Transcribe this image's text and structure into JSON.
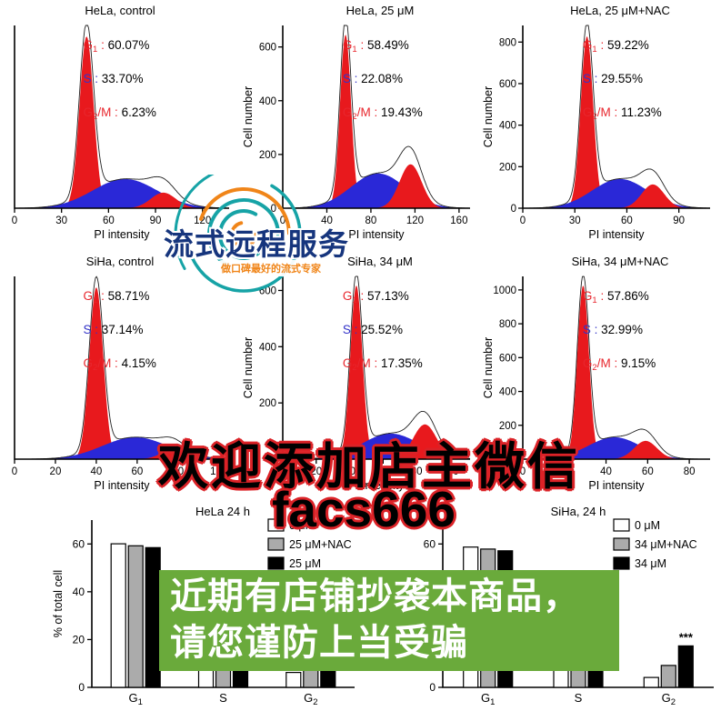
{
  "palette": {
    "g1_red": "#e8191d",
    "s_blue": "#2a28d7",
    "stat_red": "#e8262d",
    "stat_blue": "#3434c8",
    "banner_green": "#6aaa3b",
    "outline_red": "#db2227",
    "logo_teal": "#16a3a6",
    "logo_orange": "#f08519",
    "logo_navy": "#16357d"
  },
  "watermark": {
    "logo_text": "流式远程服务",
    "logo_subtext": "做口碑最好的流式专家",
    "wechat_line1": "欢迎添加店主微信",
    "wechat_line2": "facs666",
    "banner_line1": "近期有店铺抄袭本商品，",
    "banner_line2": "请您谨防上当受骗",
    "banner_color": "#6aaa3b"
  },
  "chart_data": [
    {
      "type": "area",
      "subtype": "flow-cytometry-histogram",
      "title": "HeLa, control",
      "xlabel": "PI intensity",
      "ylabel": null,
      "x_ticks": [
        0,
        30,
        60,
        90,
        120
      ],
      "x_max": 137,
      "y_ticks": [],
      "y_max": null,
      "stats": [
        {
          "label": "G1",
          "value": "60.07%",
          "color": "#e8262d"
        },
        {
          "label": "S",
          "value": "33.70%",
          "color": "#3434c8"
        },
        {
          "label": "G2/M",
          "value": "6.23%",
          "color": "#e8262d"
        }
      ],
      "g1": {
        "x": 46,
        "w": 4.5,
        "h": 0.94
      },
      "s": {
        "h": 0.16
      },
      "g2": {
        "x": 95,
        "w": 8,
        "h": 0.085
      }
    },
    {
      "type": "area",
      "subtype": "flow-cytometry-histogram",
      "title": "HeLa, 25 μM",
      "xlabel": "PI intensity",
      "ylabel": "Cell number",
      "x_ticks": [
        0,
        40,
        80,
        120,
        160
      ],
      "x_max": 170,
      "y_ticks": [
        0,
        200,
        400,
        600
      ],
      "y_max": 680,
      "stats": [
        {
          "label": "G1",
          "value": "58.49%",
          "color": "#e8262d"
        },
        {
          "label": "S",
          "value": "22.08%",
          "color": "#3434c8"
        },
        {
          "label": "G2/M",
          "value": "19.43%",
          "color": "#e8262d"
        }
      ],
      "g1": {
        "x": 57,
        "w": 5,
        "h": 0.95
      },
      "s": {
        "h": 0.19
      },
      "g2": {
        "x": 116,
        "w": 10,
        "h": 0.24
      }
    },
    {
      "type": "area",
      "subtype": "flow-cytometry-histogram",
      "title": "HeLa, 25 μM+NAC",
      "xlabel": "PI intensity",
      "ylabel": "Cell number",
      "x_ticks": [
        0,
        30,
        60,
        90
      ],
      "x_max": 108,
      "y_ticks": [
        0,
        200,
        400,
        600,
        800
      ],
      "y_max": 880,
      "stats": [
        {
          "label": "G1",
          "value": "59.22%",
          "color": "#e8262d"
        },
        {
          "label": "S",
          "value": "29.55%",
          "color": "#3434c8"
        },
        {
          "label": "G2/M",
          "value": "11.23%",
          "color": "#e8262d"
        }
      ],
      "g1": {
        "x": 37,
        "w": 3.6,
        "h": 0.94
      },
      "s": {
        "h": 0.16
      },
      "g2": {
        "x": 75,
        "w": 6.5,
        "h": 0.13
      }
    },
    {
      "type": "area",
      "subtype": "flow-cytometry-histogram",
      "title": "SiHa, control",
      "xlabel": "PI intensity",
      "ylabel": null,
      "x_ticks": [
        0,
        20,
        40,
        60,
        80,
        100
      ],
      "x_max": 105,
      "y_ticks": [],
      "y_max": null,
      "stats": [
        {
          "label": "G1",
          "value": "58.71%",
          "color": "#e8262d"
        },
        {
          "label": "S",
          "value": "37.14%",
          "color": "#3434c8"
        },
        {
          "label": "G2/M",
          "value": "4.15%",
          "color": "#e8262d"
        }
      ],
      "g1": {
        "x": 40,
        "w": 3.4,
        "h": 0.94
      },
      "s": {
        "h": 0.12
      },
      "g2": {
        "x": 78,
        "w": 6,
        "h": 0.055
      }
    },
    {
      "type": "area",
      "subtype": "flow-cytometry-histogram",
      "title": "SiHa, 34 μM",
      "xlabel": "PI intensity",
      "ylabel": "Cell number",
      "x_ticks": [
        0,
        20,
        40,
        60,
        80,
        100
      ],
      "x_max": 112,
      "y_ticks": [
        0,
        200,
        400,
        600
      ],
      "y_max": 650,
      "stats": [
        {
          "label": "G1",
          "value": "57.13%",
          "color": "#e8262d"
        },
        {
          "label": "S",
          "value": "25.52%",
          "color": "#3434c8"
        },
        {
          "label": "G2/M",
          "value": "17.35%",
          "color": "#e8262d"
        }
      ],
      "g1": {
        "x": 44,
        "w": 3.6,
        "h": 0.95
      },
      "s": {
        "h": 0.14
      },
      "g2": {
        "x": 85,
        "w": 7,
        "h": 0.19
      }
    },
    {
      "type": "area",
      "subtype": "flow-cytometry-histogram",
      "title": "SiHa, 34 μM+NAC",
      "xlabel": "PI intensity",
      "ylabel": "Cell number",
      "x_ticks": [
        0,
        20,
        40,
        60,
        80
      ],
      "x_max": 90,
      "y_ticks": [
        0,
        200,
        400,
        600,
        800,
        1000
      ],
      "y_max": 1080,
      "stats": [
        {
          "label": "G1",
          "value": "57.86%",
          "color": "#e8262d"
        },
        {
          "label": "S",
          "value": "32.99%",
          "color": "#3434c8"
        },
        {
          "label": "G2/M",
          "value": "9.15%",
          "color": "#e8262d"
        }
      ],
      "g1": {
        "x": 29,
        "w": 2.8,
        "h": 0.95
      },
      "s": {
        "h": 0.12
      },
      "g2": {
        "x": 59,
        "w": 5.5,
        "h": 0.1
      }
    },
    {
      "type": "bar",
      "title": "HeLa 24 h",
      "ylabel": "% of total cell",
      "categories": [
        "G1",
        "S",
        "G2"
      ],
      "y_ticks": [
        0,
        20,
        40,
        60
      ],
      "y_max": 70,
      "legend_position": "upper-right",
      "series": [
        {
          "name": "0 μM",
          "fill": "#ffffff",
          "values": [
            60.07,
            33.7,
            6.23
          ]
        },
        {
          "name": "25 μM+NAC",
          "fill": "#ababab",
          "values": [
            59.22,
            29.55,
            11.23
          ]
        },
        {
          "name": "25 μM",
          "fill": "#000000",
          "values": [
            58.49,
            22.08,
            19.43
          ]
        }
      ],
      "annotation": null
    },
    {
      "type": "bar",
      "title": "SiHa, 24 h",
      "ylabel": null,
      "categories": [
        "G1",
        "S",
        "G2"
      ],
      "y_ticks": [
        0,
        20,
        40,
        60
      ],
      "y_max": 70,
      "legend_position": "upper-right",
      "series": [
        {
          "name": "0 μM",
          "fill": "#ffffff",
          "values": [
            58.71,
            37.14,
            4.15
          ]
        },
        {
          "name": "34 μM+NAC",
          "fill": "#ababab",
          "values": [
            57.86,
            32.99,
            9.15
          ]
        },
        {
          "name": "34 μM",
          "fill": "#000000",
          "values": [
            57.13,
            25.52,
            17.35
          ]
        }
      ],
      "annotation": {
        "category": 2,
        "series": 2,
        "text": "***"
      }
    }
  ]
}
